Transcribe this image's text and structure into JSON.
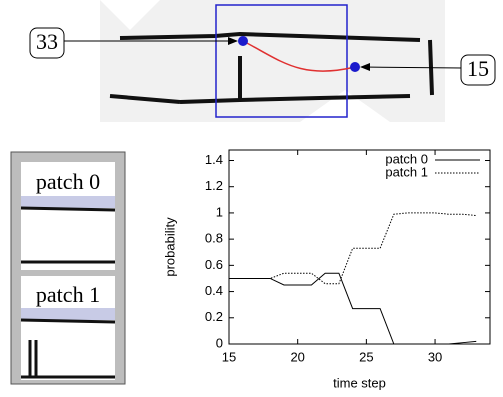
{
  "figure": {
    "map_labels": [
      "33",
      "15"
    ],
    "patch_labels": [
      "patch 0",
      "patch 1"
    ]
  },
  "chart_data": {
    "type": "line",
    "xlabel": "time step",
    "ylabel": "probability",
    "x": [
      15,
      16,
      17,
      18,
      19,
      20,
      21,
      22,
      23,
      24,
      25,
      26,
      27,
      28,
      29,
      30,
      31,
      32,
      33
    ],
    "series": [
      {
        "name": "patch 0",
        "color": "#000000",
        "dash": "solid",
        "values": [
          0.5,
          0.5,
          0.5,
          0.5,
          0.45,
          0.45,
          0.45,
          0.54,
          0.54,
          0.27,
          0.27,
          0.27,
          0,
          0,
          0,
          0,
          0,
          0.01,
          0.02
        ]
      },
      {
        "name": "patch 1",
        "color": "#000000",
        "dash": "dotted",
        "values": [
          0.5,
          0.5,
          0.5,
          0.5,
          0.54,
          0.54,
          0.54,
          0.46,
          0.46,
          0.73,
          0.73,
          0.73,
          0.99,
          1,
          1,
          1,
          0.99,
          0.99,
          0.98
        ]
      }
    ],
    "xlim": [
      15,
      34
    ],
    "xticks": [
      15,
      20,
      25,
      30
    ],
    "ylim": [
      0,
      1.48
    ],
    "yticks": [
      0,
      0.2,
      0.4,
      0.6,
      0.8,
      1,
      1.2,
      1.4
    ],
    "legend": "top-right"
  }
}
